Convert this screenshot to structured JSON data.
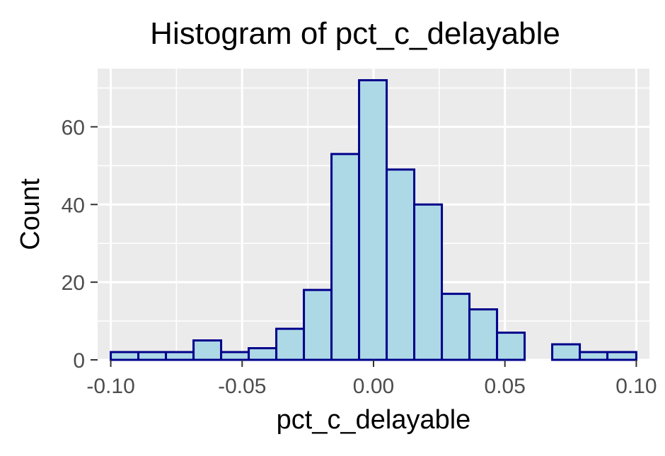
{
  "chart_data": {
    "type": "bar",
    "title": "Histogram of pct_c_delayable",
    "xlabel": "pct_c_delayable",
    "ylabel": "Count",
    "x_ticks": [
      "-0.10",
      "-0.05",
      "0.00",
      "0.05",
      "0.10"
    ],
    "y_ticks": [
      "0",
      "20",
      "40",
      "60"
    ],
    "xlim": [
      -0.105,
      0.105
    ],
    "ylim": [
      0,
      75
    ],
    "grid": true,
    "bin_width": 0.0105,
    "bins": [
      {
        "x_start": -0.1,
        "x_end": -0.0895,
        "count": 2
      },
      {
        "x_start": -0.0895,
        "x_end": -0.079,
        "count": 2
      },
      {
        "x_start": -0.079,
        "x_end": -0.0685,
        "count": 2
      },
      {
        "x_start": -0.0685,
        "x_end": -0.058,
        "count": 5
      },
      {
        "x_start": -0.058,
        "x_end": -0.0475,
        "count": 2
      },
      {
        "x_start": -0.0475,
        "x_end": -0.037,
        "count": 3
      },
      {
        "x_start": -0.037,
        "x_end": -0.0265,
        "count": 8
      },
      {
        "x_start": -0.0265,
        "x_end": -0.016,
        "count": 18
      },
      {
        "x_start": -0.016,
        "x_end": -0.0055,
        "count": 53
      },
      {
        "x_start": -0.0055,
        "x_end": 0.005,
        "count": 72
      },
      {
        "x_start": 0.005,
        "x_end": 0.0155,
        "count": 49
      },
      {
        "x_start": 0.0155,
        "x_end": 0.026,
        "count": 40
      },
      {
        "x_start": 0.026,
        "x_end": 0.0365,
        "count": 17
      },
      {
        "x_start": 0.0365,
        "x_end": 0.047,
        "count": 13
      },
      {
        "x_start": 0.047,
        "x_end": 0.0575,
        "count": 7
      },
      {
        "x_start": 0.0575,
        "x_end": 0.068,
        "count": 0
      },
      {
        "x_start": 0.068,
        "x_end": 0.0785,
        "count": 4
      },
      {
        "x_start": 0.0785,
        "x_end": 0.089,
        "count": 2
      },
      {
        "x_start": 0.089,
        "x_end": 0.1,
        "count": 2
      }
    ],
    "colors": {
      "fill": "#add8e6",
      "stroke": "#00008b",
      "panel": "#ebebeb",
      "grid": "#ffffff",
      "text": "#000000",
      "tick_text": "#4d4d4d",
      "tick": "#333333"
    }
  }
}
